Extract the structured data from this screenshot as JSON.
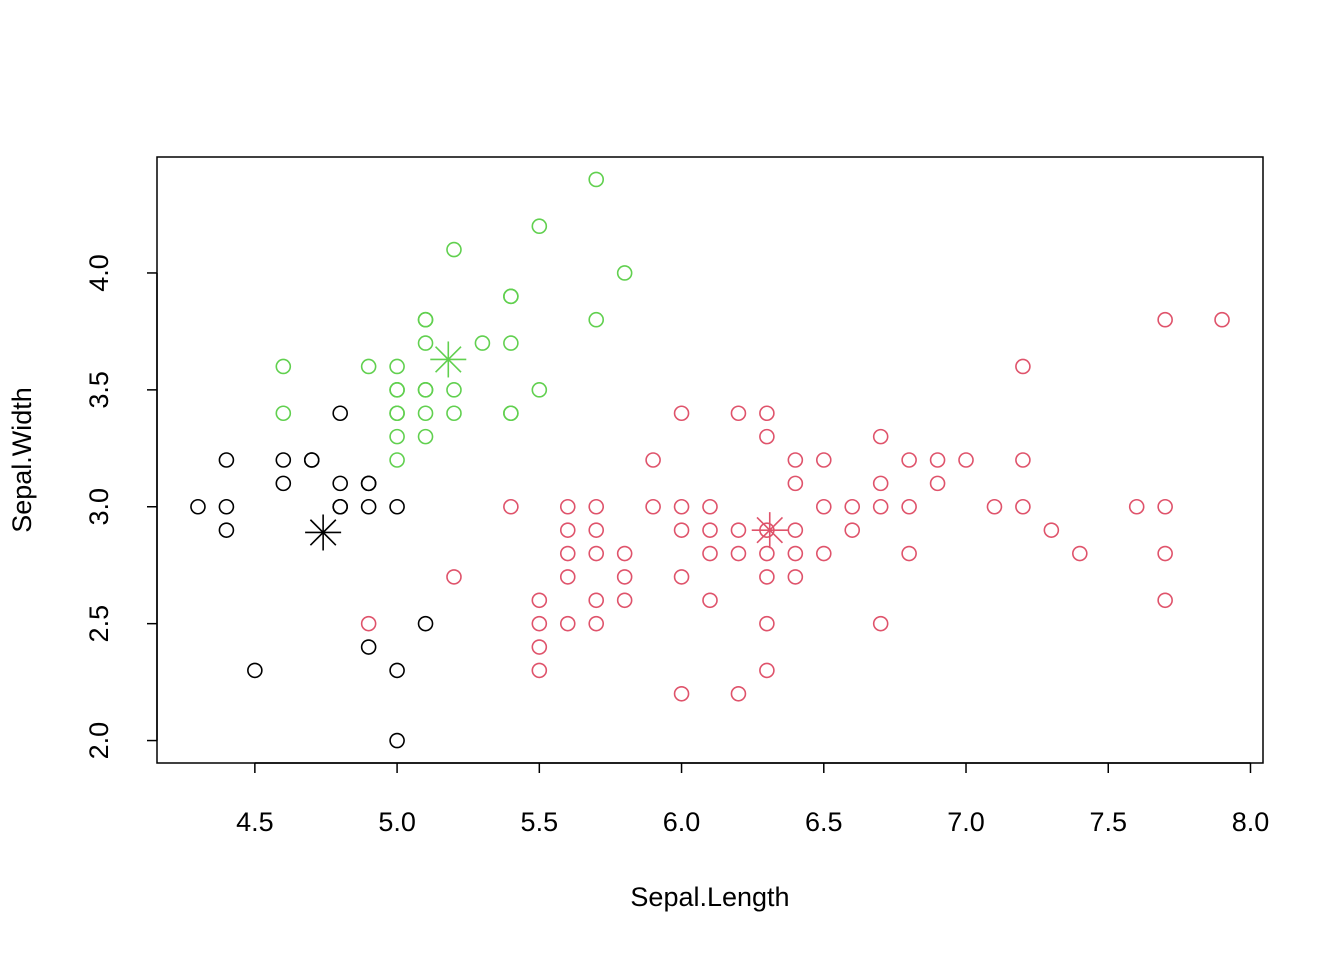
{
  "chart_data": {
    "type": "scatter",
    "x_label": "Sepal.Length",
    "y_label": "Sepal.Width",
    "xlim": [
      4.156,
      8.044
    ],
    "ylim": [
      1.904,
      4.496
    ],
    "xticks": [
      4.5,
      {
        "value": 5,
        "label": "5.0"
      },
      5.5,
      {
        "value": 6,
        "label": "6.0"
      },
      6.5,
      {
        "value": 7,
        "label": "7.0"
      },
      7.5,
      {
        "value": 8,
        "label": "8.0"
      }
    ],
    "yticks": [
      {
        "value": 2,
        "label": "2.0"
      },
      2.5,
      {
        "value": 3,
        "label": "3.0"
      },
      3.5,
      {
        "value": 4,
        "label": "4.0"
      }
    ],
    "series": [
      {
        "color": "#000000",
        "marker": "circle",
        "x": [
          4.3,
          4.4,
          4.4,
          4.4,
          4.6,
          4.6,
          4.7,
          4.7,
          4.8,
          4.8,
          4.8,
          4.8,
          4.9,
          4.9,
          4.9,
          5.0,
          4.5,
          4.9,
          5.0,
          5.0,
          5.1
        ],
        "values": [
          3.0,
          3.2,
          3.0,
          2.9,
          3.2,
          3.1,
          3.2,
          3.2,
          3.4,
          3.1,
          3.0,
          3.0,
          3.1,
          3.1,
          3.0,
          3.0,
          2.3,
          2.4,
          2.3,
          2.0,
          2.5
        ]
      },
      {
        "color": "#df536b",
        "marker": "circle",
        "x": [
          7.7,
          7.9,
          7.2,
          6.0,
          6.2,
          6.3,
          6.3,
          6.7,
          5.9,
          6.4,
          6.5,
          6.8,
          6.9,
          7.0,
          7.2,
          6.4,
          6.7,
          6.9,
          5.4,
          5.6,
          5.7,
          5.9,
          6.0,
          6.1,
          6.5,
          6.6,
          6.7,
          6.8,
          7.1,
          7.2,
          7.6,
          7.7,
          5.6,
          5.7,
          6.0,
          6.1,
          6.2,
          6.3,
          6.4,
          6.6,
          7.3,
          5.6,
          5.7,
          5.8,
          6.1,
          6.2,
          6.3,
          6.4,
          6.5,
          6.8,
          7.4,
          7.7,
          5.2,
          5.6,
          5.8,
          6.0,
          6.3,
          6.4,
          5.5,
          5.7,
          5.8,
          6.1,
          7.7,
          4.9,
          5.5,
          5.6,
          5.7,
          6.3,
          6.7,
          5.5,
          5.5,
          6.3,
          6.0,
          6.2
        ],
        "values": [
          3.8,
          3.8,
          3.6,
          3.4,
          3.4,
          3.4,
          3.3,
          3.3,
          3.2,
          3.2,
          3.2,
          3.2,
          3.2,
          3.2,
          3.2,
          3.1,
          3.1,
          3.1,
          3.0,
          3.0,
          3.0,
          3.0,
          3.0,
          3.0,
          3.0,
          3.0,
          3.0,
          3.0,
          3.0,
          3.0,
          3.0,
          3.0,
          2.9,
          2.9,
          2.9,
          2.9,
          2.9,
          2.9,
          2.9,
          2.9,
          2.9,
          2.8,
          2.8,
          2.8,
          2.8,
          2.8,
          2.8,
          2.8,
          2.8,
          2.8,
          2.8,
          2.8,
          2.7,
          2.7,
          2.7,
          2.7,
          2.7,
          2.7,
          2.6,
          2.6,
          2.6,
          2.6,
          2.6,
          2.5,
          2.5,
          2.5,
          2.5,
          2.5,
          2.5,
          2.4,
          2.3,
          2.3,
          2.2,
          2.2
        ]
      },
      {
        "color": "#61d04f",
        "marker": "circle",
        "x": [
          5.7,
          5.5,
          5.2,
          5.8,
          5.4,
          5.4,
          5.1,
          5.1,
          5.7,
          5.1,
          5.3,
          5.4,
          4.6,
          4.9,
          5.0,
          5.0,
          5.0,
          5.1,
          5.1,
          5.2,
          5.5,
          4.6,
          5.0,
          5.0,
          5.1,
          5.2,
          5.4,
          5.4,
          5.0,
          5.1,
          5.0
        ],
        "values": [
          4.4,
          4.2,
          4.1,
          4.0,
          3.9,
          3.9,
          3.8,
          3.8,
          3.8,
          3.7,
          3.7,
          3.7,
          3.6,
          3.6,
          3.6,
          3.5,
          3.5,
          3.5,
          3.5,
          3.5,
          3.5,
          3.4,
          3.4,
          3.4,
          3.4,
          3.4,
          3.4,
          3.4,
          3.3,
          3.3,
          3.2
        ]
      },
      {
        "color": "#000000",
        "marker": "asterisk",
        "x": [
          4.74
        ],
        "values": [
          2.89
        ]
      },
      {
        "color": "#df536b",
        "marker": "asterisk",
        "x": [
          6.31
        ],
        "values": [
          2.9
        ]
      },
      {
        "color": "#61d04f",
        "marker": "asterisk",
        "x": [
          5.18
        ],
        "values": [
          3.63
        ]
      }
    ]
  }
}
